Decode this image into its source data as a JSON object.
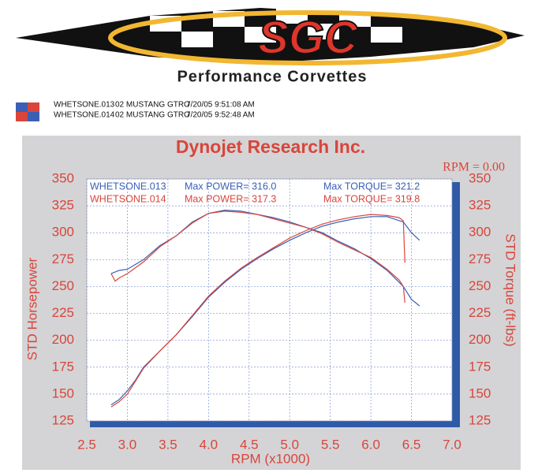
{
  "header": {
    "logo": "SGC",
    "subtitle": "Performance Corvettes",
    "runs": [
      {
        "file": "WHETSONE.013",
        "vehicle": "02 MUSTANG GTRO",
        "time": "7/20/05 9:51:08 AM",
        "color": "#3a5fb5"
      },
      {
        "file": "WHETSONE.014",
        "vehicle": "02 MUSTANG GTRO",
        "time": "7/20/05 9:52:48 AM",
        "color": "#d9453a"
      }
    ]
  },
  "chart_data": {
    "type": "line",
    "title": "Dynojet Research Inc.",
    "annotation": "RPM = 0.00",
    "x_label": "RPM (x1000)",
    "y_label": "STD Horsepower",
    "y2_label": "STD Torque (ft-lbs)",
    "legend": [
      {
        "power": "Max POWER= 316.0",
        "torque": "Max TORQUE= 321.2"
      },
      {
        "power": "Max POWER= 317.3",
        "torque": "Max TORQUE= 319.8"
      }
    ],
    "xlim": [
      2.5,
      7.0
    ],
    "xticks": [
      2.5,
      {
        "value": 3,
        "label": "3.0"
      },
      3.5,
      {
        "value": 4,
        "label": "4.0"
      },
      4.5,
      {
        "value": 5,
        "label": "5.0"
      },
      5.5,
      {
        "value": 6,
        "label": "6.0"
      },
      6.5,
      {
        "value": 7,
        "label": "7.0"
      }
    ],
    "ylim": [
      125,
      350
    ],
    "yticks": [
      125,
      150,
      175,
      200,
      225,
      250,
      275,
      300,
      325,
      350
    ],
    "y2lim": [
      125,
      350
    ],
    "y2ticks": [
      125,
      150,
      175,
      200,
      225,
      250,
      275,
      300,
      325,
      350
    ],
    "grid": true,
    "series": [
      {
        "name": "WHETSONE.013",
        "color": "#3a5fb5",
        "x": [
          2.8,
          2.9,
          3.0,
          3.1,
          3.2,
          3.4,
          3.6,
          3.8,
          4.0,
          4.2,
          4.4,
          4.6,
          4.8,
          5.0,
          5.2,
          5.4,
          5.6,
          5.8,
          6.0,
          6.2,
          6.4,
          6.5,
          6.6
        ],
        "values": [
          140,
          145,
          153,
          163,
          175,
          190,
          205,
          222,
          240,
          254,
          266,
          276,
          285,
          293,
          300,
          306,
          310,
          313,
          315,
          315,
          310,
          300,
          293
        ]
      },
      {
        "name": "WHETSONE.014",
        "color": "#d9453a",
        "x": [
          2.8,
          2.9,
          3.0,
          3.1,
          3.2,
          3.4,
          3.6,
          3.8,
          4.0,
          4.2,
          4.4,
          4.6,
          4.8,
          5.0,
          5.2,
          5.4,
          5.6,
          5.8,
          6.0,
          6.2,
          6.35,
          6.4,
          6.42
        ],
        "values": [
          138,
          143,
          150,
          162,
          174,
          190,
          205,
          223,
          241,
          255,
          267,
          277,
          286,
          295,
          302,
          308,
          312,
          315,
          317,
          316,
          314,
          311,
          272
        ]
      },
      {
        "color": "#3a5fb5",
        "axis": "y2",
        "x": [
          2.8,
          2.9,
          3.0,
          3.2,
          3.4,
          3.6,
          3.8,
          4.0,
          4.2,
          4.4,
          4.6,
          4.8,
          5.0,
          5.2,
          5.4,
          5.6,
          5.8,
          6.0,
          6.2,
          6.4,
          6.5,
          6.6
        ],
        "values": [
          262,
          265,
          266,
          275,
          288,
          297,
          310,
          318,
          321,
          320,
          317,
          314,
          310,
          305,
          300,
          292,
          285,
          276,
          265,
          250,
          238,
          232
        ]
      },
      {
        "color": "#d9453a",
        "axis": "y2",
        "x": [
          2.8,
          2.85,
          2.9,
          3.0,
          3.2,
          3.4,
          3.6,
          3.8,
          4.0,
          4.2,
          4.4,
          4.6,
          4.8,
          5.0,
          5.2,
          5.4,
          5.6,
          5.8,
          6.0,
          6.2,
          6.35,
          6.4,
          6.42
        ],
        "values": [
          262,
          255,
          258,
          262,
          273,
          287,
          297,
          309,
          318,
          320,
          319,
          317,
          313,
          309,
          305,
          299,
          291,
          284,
          277,
          266,
          256,
          250,
          235
        ]
      }
    ]
  }
}
